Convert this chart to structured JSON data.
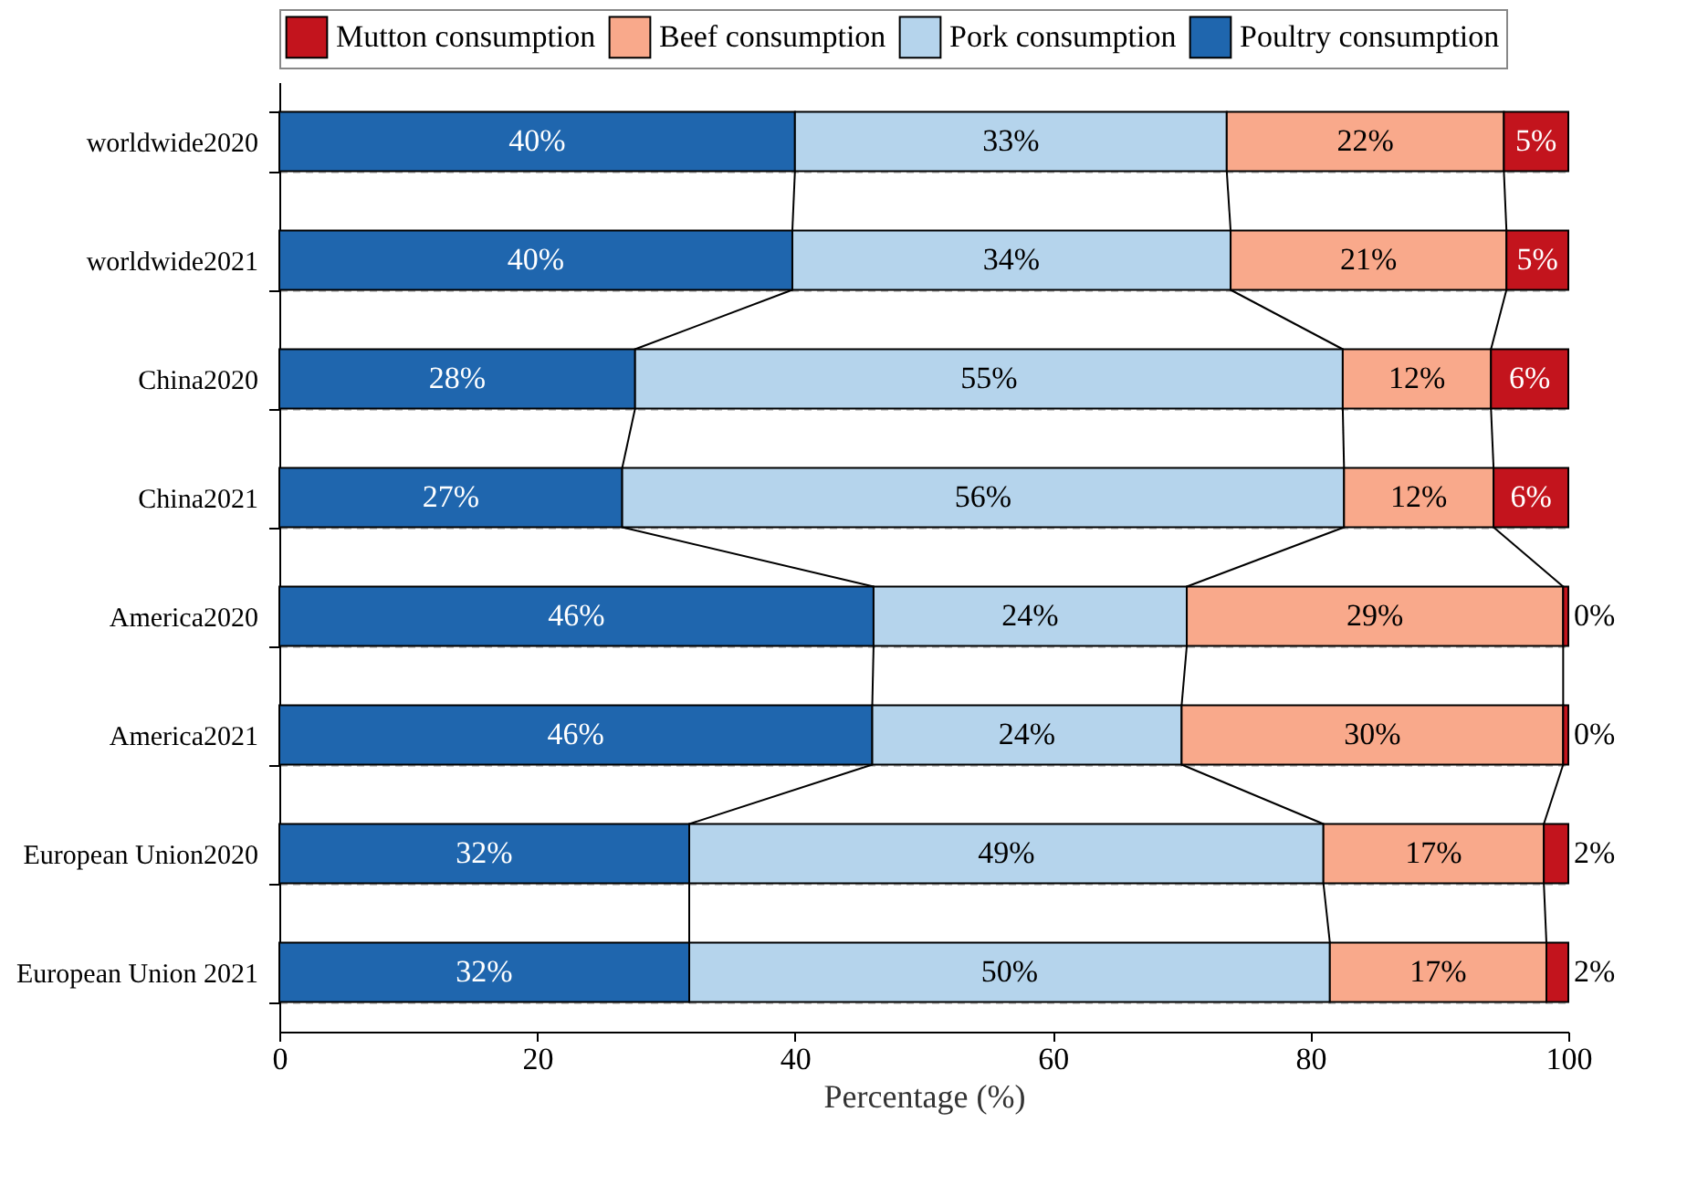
{
  "chart_data": {
    "type": "bar",
    "orientation": "horizontal",
    "stacked": true,
    "xlabel": "Percentage (%)",
    "categories": [
      "worldwide2020",
      "worldwide2021",
      "China2020",
      "China2021",
      "America2020",
      "America2021",
      "European Union2020",
      "European Union 2021"
    ],
    "series": [
      {
        "name": "Poultry consumption",
        "color": "#1f66ae",
        "values": [
          40.0,
          39.8,
          27.6,
          26.6,
          46.1,
          46.0,
          31.8,
          31.8
        ],
        "value_labels": [
          "40%",
          "40%",
          "28%",
          "27%",
          "46%",
          "46%",
          "32%",
          "32%"
        ]
      },
      {
        "name": "Pork consumption",
        "color": "#b5d4ec",
        "values": [
          33.5,
          34.0,
          54.9,
          56.0,
          24.3,
          24.0,
          49.2,
          49.7
        ],
        "value_labels": [
          "33%",
          "34%",
          "55%",
          "56%",
          "24%",
          "24%",
          "49%",
          "50%"
        ]
      },
      {
        "name": "Beef consumption",
        "color": "#f9a98b",
        "values": [
          21.5,
          21.4,
          11.5,
          11.6,
          29.2,
          29.6,
          17.1,
          16.8
        ],
        "value_labels": [
          "22%",
          "21%",
          "12%",
          "12%",
          "29%",
          "30%",
          "17%",
          "17%"
        ]
      },
      {
        "name": "Mutton consumption",
        "color": "#c3141d",
        "values": [
          5.0,
          4.8,
          6.0,
          5.8,
          0.4,
          0.4,
          1.9,
          1.7
        ],
        "value_labels": [
          "5%",
          "5%",
          "6%",
          "6%",
          "0%",
          "0%",
          "2%",
          "2%"
        ]
      }
    ],
    "xlim": [
      0,
      100
    ],
    "xticks": [
      0,
      20,
      40,
      60,
      80,
      100
    ],
    "grid": "y",
    "legend": "top"
  }
}
